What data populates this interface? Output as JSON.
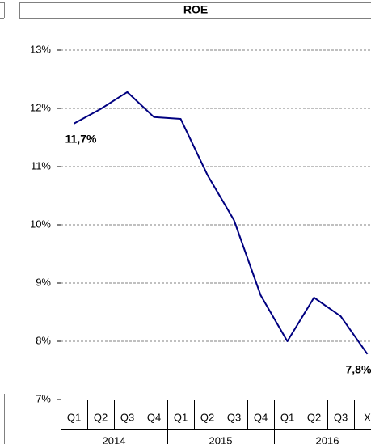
{
  "chart_data": {
    "type": "line",
    "title": "ROE",
    "categories": [
      "Q1",
      "Q2",
      "Q3",
      "Q4",
      "Q1",
      "Q2",
      "Q3",
      "Q4",
      "Q1",
      "Q2",
      "Q3",
      "X"
    ],
    "groups": [
      {
        "name": "2014",
        "size": 4
      },
      {
        "name": "2015",
        "size": 4
      },
      {
        "name": "2016",
        "size": 4
      }
    ],
    "series": [
      {
        "name": "ROE",
        "color": "#000080",
        "values": [
          11.74,
          11.99,
          12.28,
          11.85,
          11.82,
          10.86,
          10.08,
          8.79,
          8.0,
          8.75,
          8.43,
          7.78
        ],
        "value_labels": [
          "11,7%",
          null,
          null,
          null,
          null,
          null,
          null,
          null,
          null,
          null,
          null,
          "7,8%"
        ]
      }
    ],
    "ylim": [
      7,
      13
    ],
    "yticks": [
      {
        "value": 7,
        "label": "7%"
      },
      {
        "value": 8,
        "label": "8%"
      },
      {
        "value": 9,
        "label": "9%"
      },
      {
        "value": 10,
        "label": "10%"
      },
      {
        "value": 11,
        "label": "11%"
      },
      {
        "value": 12,
        "label": "12%"
      },
      {
        "value": 13,
        "label": "13%"
      }
    ],
    "grid": true
  }
}
